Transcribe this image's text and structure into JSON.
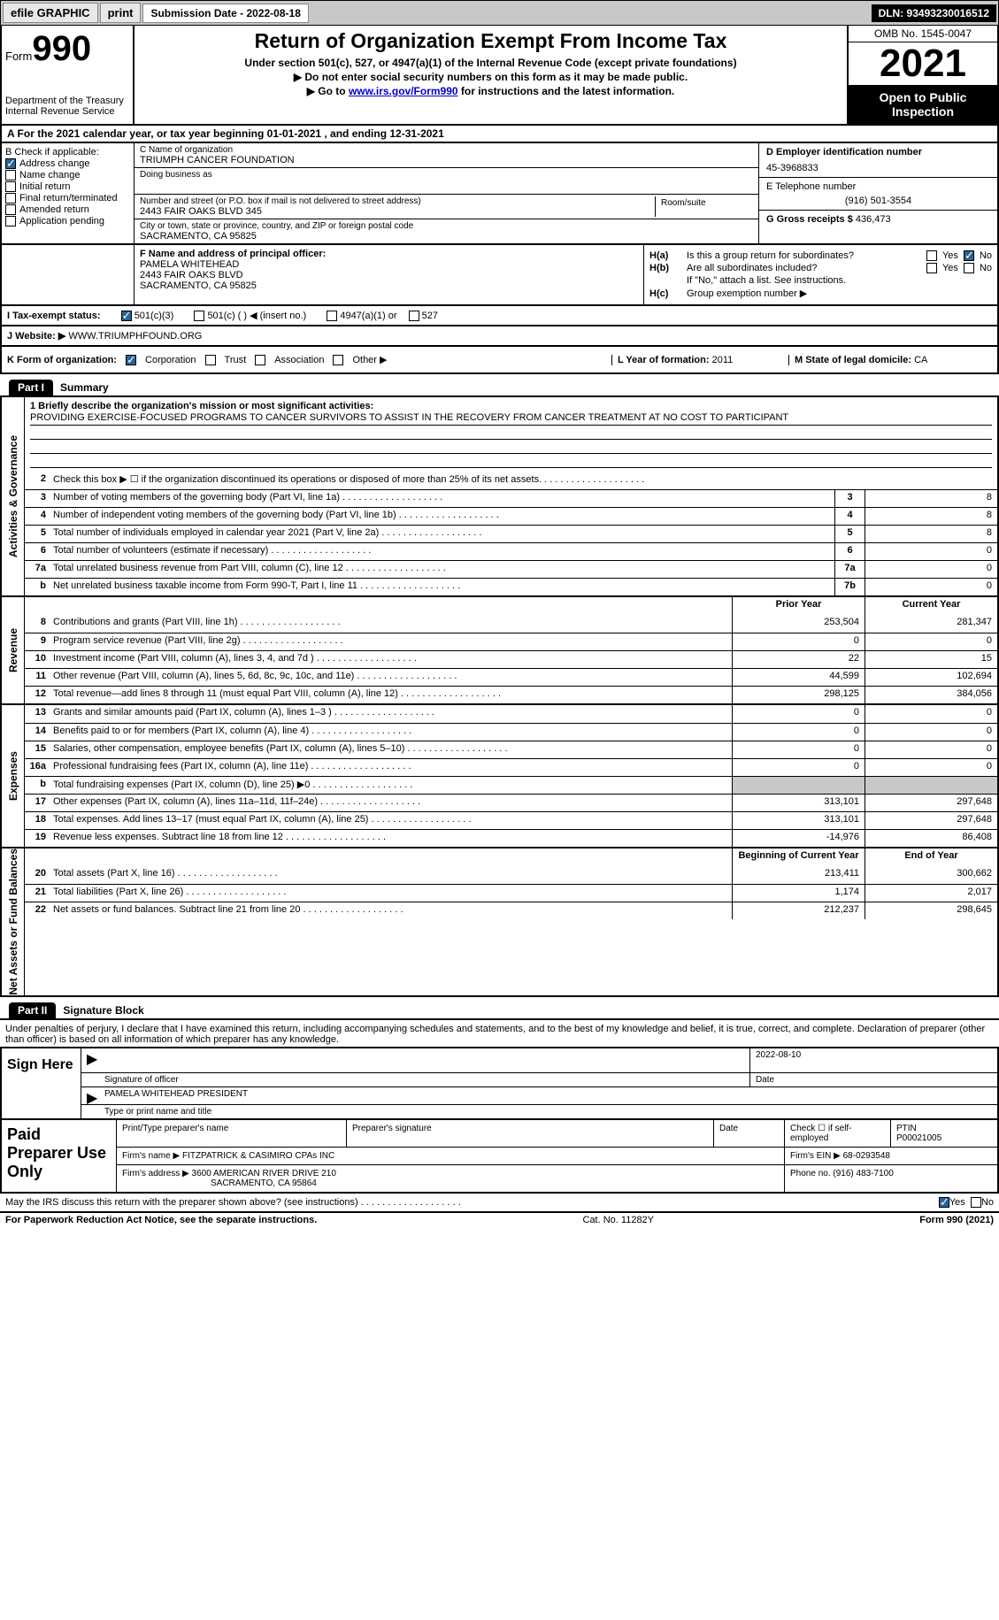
{
  "toolbar": {
    "efile": "efile GRAPHIC",
    "print": "print",
    "sub_date_label": "Submission Date - 2022-08-18",
    "dln": "DLN: 93493230016512"
  },
  "header": {
    "form_word": "Form",
    "form_num": "990",
    "dept": "Department of the Treasury Internal Revenue Service",
    "title": "Return of Organization Exempt From Income Tax",
    "sub1": "Under section 501(c), 527, or 4947(a)(1) of the Internal Revenue Code (except private foundations)",
    "sub2": "▶ Do not enter social security numbers on this form as it may be made public.",
    "sub3_pre": "▶ Go to ",
    "sub3_link": "www.irs.gov/Form990",
    "sub3_post": " for instructions and the latest information.",
    "omb": "OMB No. 1545-0047",
    "year": "2021",
    "inspect": "Open to Public Inspection"
  },
  "line_a": "A For the 2021 calendar year, or tax year beginning 01-01-2021    , and ending 12-31-2021",
  "section_b": {
    "label": "B Check if applicable:",
    "opts": [
      "Address change",
      "Name change",
      "Initial return",
      "Final return/terminated",
      "Amended return",
      "Application pending"
    ],
    "checked": [
      true,
      false,
      false,
      false,
      false,
      false
    ]
  },
  "section_c": {
    "name_lbl": "C Name of organization",
    "name": "TRIUMPH CANCER FOUNDATION",
    "dba_lbl": "Doing business as",
    "addr_lbl": "Number and street (or P.O. box if mail is not delivered to street address)",
    "room_lbl": "Room/suite",
    "addr": "2443 FAIR OAKS BLVD 345",
    "city_lbl": "City or town, state or province, country, and ZIP or foreign postal code",
    "city": "SACRAMENTO, CA  95825"
  },
  "section_d": {
    "lbl": "D Employer identification number",
    "val": "45-3968833"
  },
  "section_e": {
    "lbl": "E Telephone number",
    "val": "(916) 501-3554"
  },
  "section_g": {
    "lbl": "G Gross receipts $",
    "val": "436,473"
  },
  "section_f": {
    "lbl": "F  Name and address of principal officer:",
    "name": "PAMELA WHITEHEAD",
    "addr1": "2443 FAIR OAKS BLVD",
    "addr2": "SACRAMENTO, CA  95825"
  },
  "section_h": {
    "a_lbl": "H(a)",
    "a_txt": "Is this a group return for subordinates?",
    "a_no": true,
    "b_lbl": "H(b)",
    "b_txt": "Are all subordinates included?",
    "b_note": "If \"No,\" attach a list. See instructions.",
    "c_lbl": "H(c)",
    "c_txt": "Group exemption number ▶"
  },
  "line_i": {
    "lbl": "I   Tax-exempt status:",
    "opts": [
      "501(c)(3)",
      "501(c) (  ) ◀ (insert no.)",
      "4947(a)(1) or",
      "527"
    ],
    "checked": [
      true,
      false,
      false,
      false
    ]
  },
  "line_j": {
    "lbl": "J   Website: ▶",
    "val": "WWW.TRIUMPHFOUND.ORG"
  },
  "line_k": {
    "lbl": "K Form of organization:",
    "opts": [
      "Corporation",
      "Trust",
      "Association",
      "Other ▶"
    ],
    "checked": [
      true,
      false,
      false,
      false
    ],
    "l_lbl": "L Year of formation:",
    "l_val": "2011",
    "m_lbl": "M State of legal domicile:",
    "m_val": "CA"
  },
  "part1": {
    "tag": "Part I",
    "title": "Summary"
  },
  "sections": {
    "gov_label": "Activities & Governance",
    "rev_label": "Revenue",
    "exp_label": "Expenses",
    "net_label": "Net Assets or Fund Balances"
  },
  "mission": {
    "lbl": "1   Briefly describe the organization's mission or most significant activities:",
    "txt": "PROVIDING EXERCISE-FOCUSED PROGRAMS TO CANCER SURVIVORS TO ASSIST IN THE RECOVERY FROM CANCER TREATMENT AT NO COST TO PARTICIPANT"
  },
  "gov_rows": [
    {
      "n": "2",
      "d": "Check this box ▶ ☐ if the organization discontinued its operations or disposed of more than 25% of its net assets."
    },
    {
      "n": "3",
      "d": "Number of voting members of the governing body (Part VI, line 1a)",
      "box": "3",
      "v": "8"
    },
    {
      "n": "4",
      "d": "Number of independent voting members of the governing body (Part VI, line 1b)",
      "box": "4",
      "v": "8"
    },
    {
      "n": "5",
      "d": "Total number of individuals employed in calendar year 2021 (Part V, line 2a)",
      "box": "5",
      "v": "8"
    },
    {
      "n": "6",
      "d": "Total number of volunteers (estimate if necessary)",
      "box": "6",
      "v": "0"
    },
    {
      "n": "7a",
      "d": "Total unrelated business revenue from Part VIII, column (C), line 12",
      "box": "7a",
      "v": "0"
    },
    {
      "n": "b",
      "d": "Net unrelated business taxable income from Form 990-T, Part I, line 11",
      "box": "7b",
      "v": "0"
    }
  ],
  "two_col_hdr": {
    "py": "Prior Year",
    "cy": "Current Year"
  },
  "rev_rows": [
    {
      "n": "8",
      "d": "Contributions and grants (Part VIII, line 1h)",
      "py": "253,504",
      "cy": "281,347"
    },
    {
      "n": "9",
      "d": "Program service revenue (Part VIII, line 2g)",
      "py": "0",
      "cy": "0"
    },
    {
      "n": "10",
      "d": "Investment income (Part VIII, column (A), lines 3, 4, and 7d )",
      "py": "22",
      "cy": "15"
    },
    {
      "n": "11",
      "d": "Other revenue (Part VIII, column (A), lines 5, 6d, 8c, 9c, 10c, and 11e)",
      "py": "44,599",
      "cy": "102,694"
    },
    {
      "n": "12",
      "d": "Total revenue—add lines 8 through 11 (must equal Part VIII, column (A), line 12)",
      "py": "298,125",
      "cy": "384,056"
    }
  ],
  "exp_rows": [
    {
      "n": "13",
      "d": "Grants and similar amounts paid (Part IX, column (A), lines 1–3 )",
      "py": "0",
      "cy": "0"
    },
    {
      "n": "14",
      "d": "Benefits paid to or for members (Part IX, column (A), line 4)",
      "py": "0",
      "cy": "0"
    },
    {
      "n": "15",
      "d": "Salaries, other compensation, employee benefits (Part IX, column (A), lines 5–10)",
      "py": "0",
      "cy": "0"
    },
    {
      "n": "16a",
      "d": "Professional fundraising fees (Part IX, column (A), line 11e)",
      "py": "0",
      "cy": "0"
    },
    {
      "n": "b",
      "d": "Total fundraising expenses (Part IX, column (D), line 25) ▶0",
      "shaded": true
    },
    {
      "n": "17",
      "d": "Other expenses (Part IX, column (A), lines 11a–11d, 11f–24e)",
      "py": "313,101",
      "cy": "297,648"
    },
    {
      "n": "18",
      "d": "Total expenses. Add lines 13–17 (must equal Part IX, column (A), line 25)",
      "py": "313,101",
      "cy": "297,648"
    },
    {
      "n": "19",
      "d": "Revenue less expenses. Subtract line 18 from line 12",
      "py": "-14,976",
      "cy": "86,408"
    }
  ],
  "net_hdr": {
    "py": "Beginning of Current Year",
    "cy": "End of Year"
  },
  "net_rows": [
    {
      "n": "20",
      "d": "Total assets (Part X, line 16)",
      "py": "213,411",
      "cy": "300,662"
    },
    {
      "n": "21",
      "d": "Total liabilities (Part X, line 26)",
      "py": "1,174",
      "cy": "2,017"
    },
    {
      "n": "22",
      "d": "Net assets or fund balances. Subtract line 21 from line 20",
      "py": "212,237",
      "cy": "298,645"
    }
  ],
  "part2": {
    "tag": "Part II",
    "title": "Signature Block"
  },
  "decl": "Under penalties of perjury, I declare that I have examined this return, including accompanying schedules and statements, and to the best of my knowledge and belief, it is true, correct, and complete. Declaration of preparer (other than officer) is based on all information of which preparer has any knowledge.",
  "sign": {
    "label": "Sign Here",
    "sig_lbl": "Signature of officer",
    "date": "2022-08-10",
    "date_lbl": "Date",
    "name": "PAMELA WHITEHEAD  PRESIDENT",
    "name_lbl": "Type or print name and title"
  },
  "prep": {
    "label": "Paid Preparer Use Only",
    "h1": "Print/Type preparer's name",
    "h2": "Preparer's signature",
    "h3": "Date",
    "h4": "Check ☐ if self-employed",
    "h5_lbl": "PTIN",
    "h5": "P00021005",
    "firm_lbl": "Firm's name   ▶",
    "firm": "FITZPATRICK & CASIMIRO CPAs INC",
    "ein_lbl": "Firm's EIN ▶",
    "ein": "68-0293548",
    "addr_lbl": "Firm's address ▶",
    "addr1": "3600 AMERICAN RIVER DRIVE 210",
    "addr2": "SACRAMENTO, CA  95864",
    "phone_lbl": "Phone no.",
    "phone": "(916) 483-7100"
  },
  "may": {
    "txt": "May the IRS discuss this return with the preparer shown above? (see instructions)",
    "yes": true
  },
  "footer": {
    "l": "For Paperwork Reduction Act Notice, see the separate instructions.",
    "c": "Cat. No. 11282Y",
    "r": "Form 990 (2021)"
  },
  "yn": {
    "yes": "Yes",
    "no": "No"
  }
}
